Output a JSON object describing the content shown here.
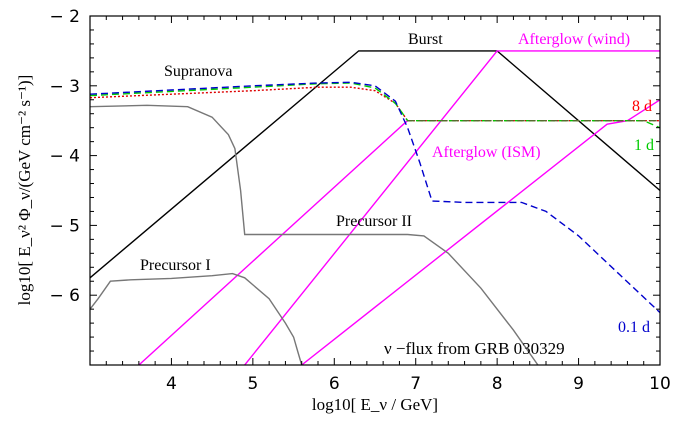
{
  "chart_data": {
    "type": "line",
    "xlabel": "log10[ E_ν / GeV]",
    "ylabel": "log10[ E_ν² Φ_ν/(GeV cm⁻² s⁻¹)]",
    "xlim": [
      3.0,
      10.0
    ],
    "ylim": [
      -7.0,
      -2.0
    ],
    "xticks": [
      4,
      5,
      6,
      7,
      8,
      9,
      10
    ],
    "yticks": [
      -6,
      -5,
      -4,
      -3,
      -2
    ],
    "annotation": "ν −flux from GRB 030329",
    "series": [
      {
        "name": "Burst",
        "color": "#000000",
        "dash": "solid",
        "x": [
          3.0,
          6.3,
          8.0,
          10.0
        ],
        "y": [
          -5.75,
          -2.5,
          -2.5,
          -4.5
        ]
      },
      {
        "name": "Afterglow (wind)",
        "color": "#ff00ff",
        "dash": "solid",
        "x": [
          4.9,
          8.0,
          10.0
        ],
        "y": [
          -7.0,
          -2.5,
          -2.5
        ]
      },
      {
        "name": "Afterglow (ISM)",
        "color": "#ff00ff",
        "dash": "solid",
        "x": [
          3.6,
          6.85,
          6.9
        ],
        "y": [
          -7.0,
          -3.55,
          -3.5
        ]
      },
      {
        "name": "",
        "color": "#ff00ff",
        "dash": "solid",
        "x": [
          5.6,
          9.35,
          9.6,
          10.0
        ],
        "y": [
          -7.0,
          -3.55,
          -3.5,
          -3.2
        ]
      },
      {
        "name": "Supranova",
        "color": "#dd0000",
        "dash": "dotted",
        "x": [
          3.0,
          4.0,
          5.0,
          5.8,
          6.2,
          6.5,
          6.75,
          6.9,
          7.5,
          8.0,
          9.0,
          10.0
        ],
        "y": [
          -3.17,
          -3.12,
          -3.07,
          -3.02,
          -3.02,
          -3.07,
          -3.25,
          -3.5,
          -3.5,
          -3.5,
          -3.5,
          -3.5
        ]
      },
      {
        "name": "",
        "color": "#00cc00",
        "dash": "dashed",
        "x": [
          3.0,
          4.0,
          5.0,
          5.8,
          6.2,
          6.5,
          6.75,
          6.9,
          7.5,
          8.0,
          9.0,
          9.8,
          10.0
        ],
        "y": [
          -3.14,
          -3.08,
          -3.02,
          -2.97,
          -2.96,
          -3.03,
          -3.25,
          -3.5,
          -3.5,
          -3.5,
          -3.5,
          -3.5,
          -3.6
        ]
      },
      {
        "name": "",
        "color": "#0000cc",
        "dash": "dashed",
        "x": [
          3.0,
          4.0,
          5.0,
          5.8,
          6.2,
          6.5,
          6.75,
          6.9,
          7.05,
          7.2,
          7.6,
          8.3,
          8.6,
          9.0,
          9.5,
          10.0
        ],
        "y": [
          -3.12,
          -3.06,
          -3.0,
          -2.96,
          -2.95,
          -3.0,
          -3.22,
          -3.6,
          -4.1,
          -4.65,
          -4.67,
          -4.67,
          -4.8,
          -5.15,
          -5.7,
          -6.25
        ]
      },
      {
        "name": "",
        "color": "#556b2f",
        "dash": "dashed",
        "x": [
          6.9,
          8.0,
          9.0,
          10.0
        ],
        "y": [
          -3.5,
          -3.5,
          -3.5,
          -3.5
        ]
      },
      {
        "name": "Precursor II",
        "color": "#777777",
        "dash": "solid",
        "x": [
          3.0,
          3.7,
          4.2,
          4.5,
          4.7,
          4.78,
          4.85,
          4.9,
          5.0,
          5.5,
          6.0,
          6.5,
          6.9,
          7.1,
          7.4,
          7.8,
          8.2,
          8.5
        ],
        "y": [
          -3.3,
          -3.28,
          -3.3,
          -3.45,
          -3.7,
          -3.9,
          -4.5,
          -5.13,
          -5.13,
          -5.13,
          -5.13,
          -5.13,
          -5.13,
          -5.15,
          -5.4,
          -5.9,
          -6.5,
          -7.0
        ]
      },
      {
        "name": "Precursor I",
        "color": "#777777",
        "dash": "solid",
        "x": [
          3.0,
          3.1,
          3.25,
          3.5,
          4.0,
          4.5,
          4.75,
          4.9,
          5.2,
          5.4,
          5.5,
          5.55,
          5.6
        ],
        "y": [
          -6.2,
          -6.05,
          -5.8,
          -5.78,
          -5.76,
          -5.72,
          -5.69,
          -5.75,
          -6.05,
          -6.4,
          -6.6,
          -6.8,
          -7.0
        ]
      }
    ],
    "labels": {
      "burst": "Burst",
      "afterglow_wind": "Afterglow (wind)",
      "afterglow_ism": "Afterglow (ISM)",
      "supranova": "Supranova",
      "precursor_1": "Precursor I",
      "precursor_2": "Precursor II",
      "curve_8d": "8 d",
      "curve_1d": "1 d",
      "curve_01d": "0.1 d"
    }
  }
}
